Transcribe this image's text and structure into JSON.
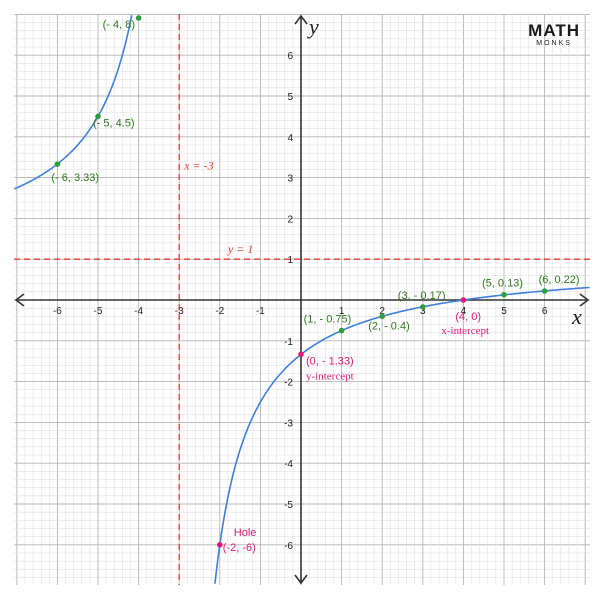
{
  "chart_data": {
    "type": "line",
    "title": "",
    "xlabel": "x",
    "ylabel": "y",
    "xlim": [
      -7.1,
      7.1
    ],
    "ylim": [
      -7.1,
      7.1
    ],
    "grid": true,
    "x_ticks": [
      -6,
      -5,
      -4,
      -3,
      -2,
      -1,
      1,
      2,
      3,
      4,
      5,
      6
    ],
    "y_ticks": [
      -6,
      -5,
      -4,
      -3,
      -2,
      -1,
      1,
      2,
      3,
      4,
      5,
      6
    ],
    "function": "y = (x - 4)/(x + 3)",
    "asymptotes": [
      {
        "orientation": "vertical",
        "value": -3,
        "label": "x = -3"
      },
      {
        "orientation": "horizontal",
        "value": 1,
        "label": "y = 1"
      }
    ],
    "points": [
      {
        "x": -4,
        "y": 8,
        "label": "(- 4, 8)",
        "kind": "point"
      },
      {
        "x": -5,
        "y": 4.5,
        "label": "(- 5, 4.5)",
        "kind": "point"
      },
      {
        "x": -6,
        "y": 3.33,
        "label": "(- 6, 3.33)",
        "kind": "point"
      },
      {
        "x": 1,
        "y": -0.75,
        "label": "(1, - 0.75)",
        "kind": "point"
      },
      {
        "x": 2,
        "y": -0.4,
        "label": "(2, - 0.4)",
        "kind": "point"
      },
      {
        "x": 3,
        "y": -0.17,
        "label": "(3, - 0.17)",
        "kind": "point"
      },
      {
        "x": 5,
        "y": 0.13,
        "label": "(5, 0.13)",
        "kind": "point"
      },
      {
        "x": 6,
        "y": 0.22,
        "label": "(6, 0.22)",
        "kind": "point"
      },
      {
        "x": 0,
        "y": -1.33,
        "label": "(0, - 1.33)",
        "sublabel": "y-intercept",
        "kind": "intercept"
      },
      {
        "x": 4,
        "y": 0,
        "label": "(4, 0)",
        "sublabel": "x-intercept",
        "kind": "intercept"
      },
      {
        "x": -2,
        "y": -6,
        "label": "(-2, -6)",
        "sublabel": "Hole",
        "kind": "hole"
      }
    ]
  },
  "colors": {
    "curve": "#3f7fe0",
    "asymptote": "#e53935",
    "point": "#2e9e3e",
    "point_label": "#2f7a1f",
    "special": "#e0187a",
    "grid_minor": "#dcdcdc",
    "grid_major": "#b5b5b5",
    "axis": "#333333"
  },
  "logo": {
    "main": "MATH",
    "sub": "MONKS"
  }
}
